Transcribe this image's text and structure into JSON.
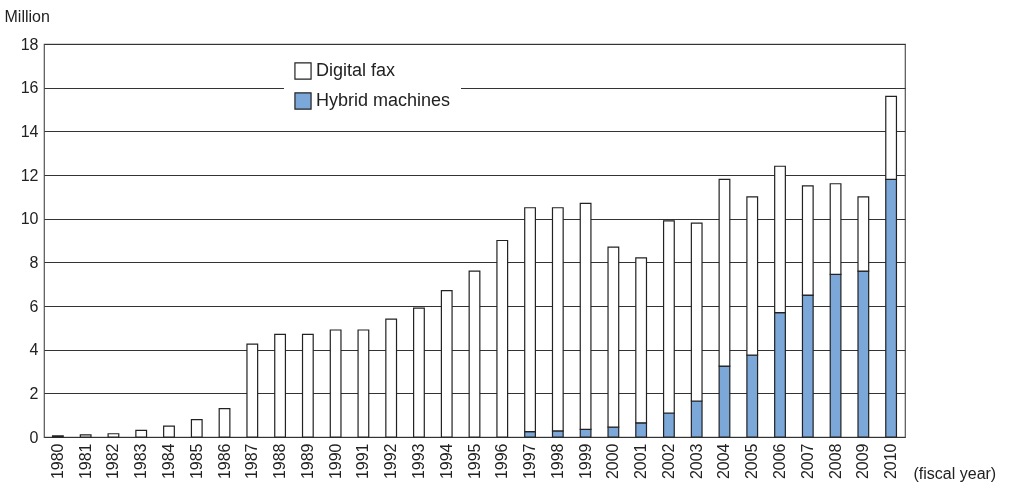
{
  "chart_data": {
    "type": "bar",
    "stacked": true,
    "ylabel": "Million",
    "xlabel": "(fiscal year)",
    "categories": [
      "1980",
      "1981",
      "1982",
      "1983",
      "1984",
      "1985",
      "1986",
      "1987",
      "1988",
      "1989",
      "1990",
      "1991",
      "1992",
      "1993",
      "1994",
      "1995",
      "1996",
      "1997",
      "1998",
      "1999",
      "2000",
      "2001",
      "2002",
      "2003",
      "2004",
      "2005",
      "2006",
      "2007",
      "2008",
      "2009",
      "2010"
    ],
    "series": [
      {
        "name": "Hybrid machines",
        "color": "#7ba7d9",
        "values": [
          null,
          null,
          null,
          null,
          null,
          null,
          null,
          null,
          null,
          null,
          null,
          null,
          null,
          null,
          null,
          null,
          null,
          0.25,
          0.28,
          0.35,
          0.45,
          0.65,
          1.1,
          1.65,
          3.25,
          3.75,
          5.7,
          6.5,
          7.45,
          7.6,
          11.8
        ]
      },
      {
        "name": "Digital fax",
        "color": "#ffffff",
        "values": [
          0.05,
          0.1,
          0.15,
          0.3,
          0.5,
          0.8,
          1.3,
          4.25,
          4.7,
          4.7,
          4.9,
          4.9,
          5.4,
          5.9,
          6.7,
          7.6,
          9.0,
          10.25,
          10.22,
          10.35,
          8.25,
          7.55,
          8.8,
          8.15,
          8.55,
          7.25,
          6.7,
          5.0,
          4.15,
          3.4,
          3.8
        ]
      }
    ],
    "ylim": [
      0,
      18
    ],
    "yticks": [
      0,
      2,
      4,
      6,
      8,
      10,
      12,
      14,
      16,
      18
    ],
    "grid": "y",
    "legend": "top"
  }
}
